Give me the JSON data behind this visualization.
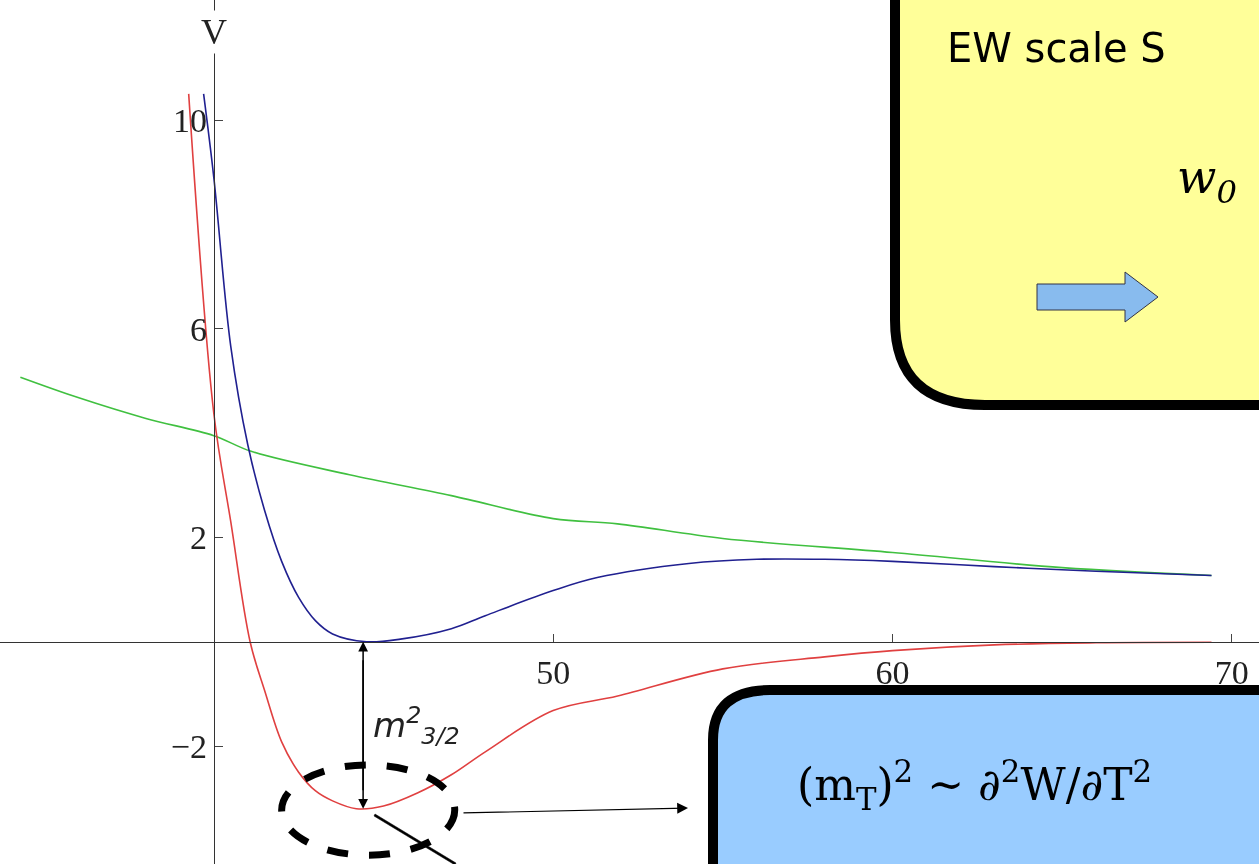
{
  "chart_data": {
    "type": "line",
    "ylabel": "V",
    "xlim": [
      33.7,
      70.8
    ],
    "ylim": [
      -4.26,
      12.3
    ],
    "xticks": [
      50,
      60,
      70
    ],
    "yticks": [
      -2,
      2,
      6,
      10
    ],
    "line_style": "solid",
    "marker": "none",
    "series": [
      {
        "color": "#40c040",
        "x": [
          34.3,
          36,
          38,
          40,
          41.1,
          44,
          47,
          50,
          51.9,
          55,
          60,
          65,
          69.4
        ],
        "values": [
          5.07,
          4.68,
          4.28,
          3.95,
          3.65,
          3.2,
          2.8,
          2.36,
          2.26,
          1.98,
          1.71,
          1.42,
          1.27
        ]
      },
      {
        "color": "#202090",
        "x": [
          39.7,
          40,
          40.5,
          41,
          41.5,
          42,
          42.5,
          43,
          43.5,
          44.5,
          45.5,
          47,
          48,
          50,
          51.3,
          54,
          56,
          58,
          60,
          63,
          66,
          69.4
        ],
        "values": [
          10.5,
          8.9,
          5.66,
          3.78,
          2.51,
          1.54,
          0.85,
          0.4,
          0.15,
          0,
          0.05,
          0.25,
          0.5,
          0.98,
          1.23,
          1.5,
          1.58,
          1.58,
          1.54,
          1.44,
          1.35,
          1.27
        ]
      },
      {
        "color": "#e04040",
        "x": [
          39.26,
          40,
          40.5,
          41.07,
          41.5,
          42,
          42.5,
          43,
          43.5,
          44.2,
          45,
          46,
          47,
          48,
          50,
          51.9,
          55,
          58,
          60,
          63,
          66,
          69.4
        ],
        "values": [
          10.5,
          4.38,
          2.3,
          0,
          -0.94,
          -1.92,
          -2.5,
          -2.86,
          -3.05,
          -3.2,
          -3.15,
          -2.9,
          -2.55,
          -2.11,
          -1.32,
          -1.04,
          -0.52,
          -0.29,
          -0.17,
          -0.06,
          -0.02,
          -0.01
        ]
      }
    ],
    "annotations": [
      "m$^{2}$$_{3/2}$",
      "EW scale S",
      "w$_{0}$",
      "(m$_{T}$)$^{2}$ ~ ∂$^{2}$W/∂T$^{2}$"
    ]
  }
}
